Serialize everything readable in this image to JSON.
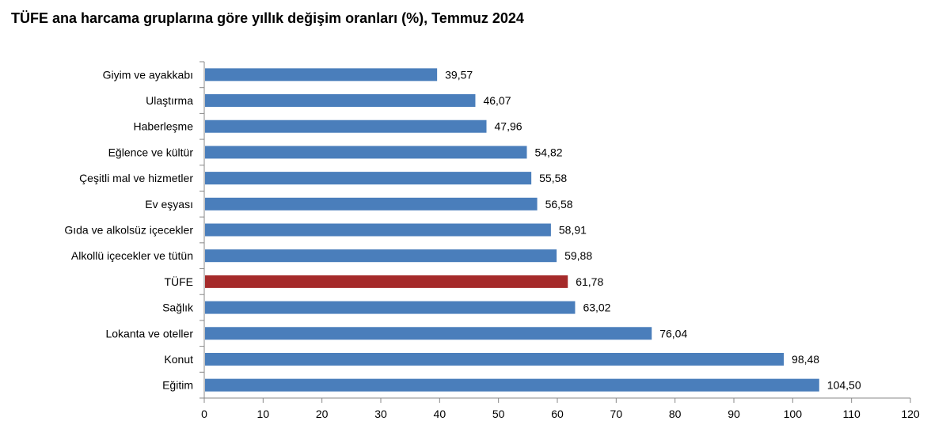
{
  "chart_data": {
    "type": "bar",
    "orientation": "horizontal",
    "title": "TÜFE ana harcama gruplarına göre yıllık değişim oranları (%), Temmuz 2024",
    "categories": [
      "Giyim ve ayakkabı",
      "Ulaştırma",
      "Haberleşme",
      "Eğlence ve kültür",
      "Çeşitli mal ve hizmetler",
      "Ev eşyası",
      "Gıda ve alkolsüz içecekler",
      "Alkollü içecekler ve tütün",
      "TÜFE",
      "Sağlık",
      "Lokanta ve oteller",
      "Konut",
      "Eğitim"
    ],
    "values": [
      39.57,
      46.07,
      47.96,
      54.82,
      55.58,
      56.58,
      58.91,
      59.88,
      61.78,
      63.02,
      76.04,
      98.48,
      104.5
    ],
    "value_labels": [
      "39,57",
      "46,07",
      "47,96",
      "54,82",
      "55,58",
      "56,58",
      "58,91",
      "59,88",
      "61,78",
      "63,02",
      "76,04",
      "98,48",
      "104,50"
    ],
    "highlight": "TÜFE",
    "xlim": [
      0,
      120
    ],
    "xticks": [
      0,
      10,
      20,
      30,
      40,
      50,
      60,
      70,
      80,
      90,
      100,
      110,
      120
    ],
    "xlabel": "",
    "ylabel": "",
    "grid": false,
    "legend": "none",
    "colors": {
      "bar": "#4a7ebb",
      "highlight_bar": "#a52a2a",
      "axis": "#888888"
    }
  }
}
